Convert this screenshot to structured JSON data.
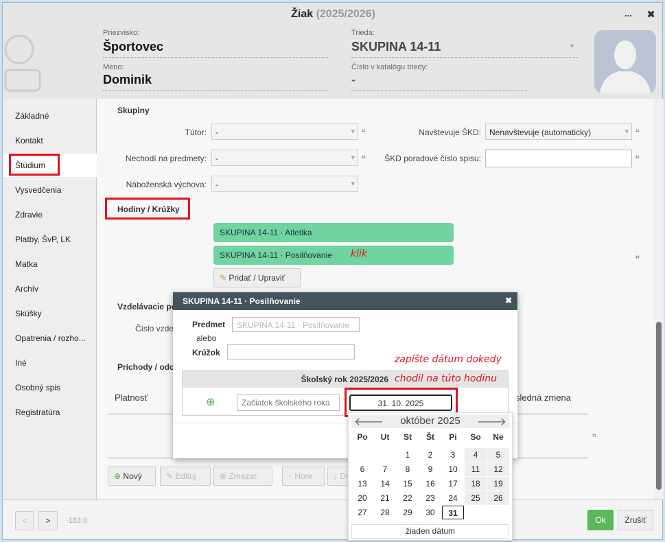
{
  "window": {
    "title": "Žiak",
    "year": "(2025/2026)",
    "more": "...",
    "close": "✖"
  },
  "header": {
    "surname_label": "Priezvisko:",
    "surname": "Športovec",
    "name_label": "Meno:",
    "name": "Dominik",
    "class_label": "Trieda:",
    "class": "SKUPINA 14-11",
    "catalog_label": "Číslo v katalógu triedy:",
    "catalog": "-"
  },
  "sidebar": {
    "items": [
      {
        "label": "Základné"
      },
      {
        "label": "Kontakt"
      },
      {
        "label": "Štúdium"
      },
      {
        "label": "Vysvedčenia"
      },
      {
        "label": "Zdravie"
      },
      {
        "label": "Platby, ŠvP, LK"
      },
      {
        "label": "Matka"
      },
      {
        "label": "Archív"
      },
      {
        "label": "Skúšky"
      },
      {
        "label": "Opatrenia / rozho..."
      },
      {
        "label": "Iné"
      },
      {
        "label": "Osobný spis"
      },
      {
        "label": "Registratúra"
      }
    ],
    "selected": "Štúdium"
  },
  "main": {
    "groups_title": "Skupiny",
    "tutor_label": "Tútor:",
    "tutor": "-",
    "not_attending_label": "Nechodí na predmety:",
    "not_attending": "-",
    "religion_label": "Náboženská výchova:",
    "religion": "-",
    "skd_label": "Navštevuje ŠKD:",
    "skd": "Nenavštevuje (automaticky)",
    "skd_num_label": "ŠKD poradové číslo spisu:",
    "skd_num": "",
    "hash": "⌗",
    "hours_title": "Hodiny / Krúžky",
    "hours": [
      {
        "label": "SKUPINA 14-11 · Atletika"
      },
      {
        "label": "SKUPINA 14-11 · Posilňovanie"
      }
    ],
    "annotation_click": "klik",
    "add_edit": "Pridať / Upraviť",
    "edu_title": "Vzdelávacie po",
    "edu_num_label": "Číslo vzde",
    "arrivals_title": "Príchody / odch",
    "validity": "Platnosť",
    "last_change": "sledná zmena",
    "toolbar": {
      "new": "Nový",
      "edit": "Edituj",
      "delete": "Zmazať",
      "up": "Hore",
      "down": "Do"
    }
  },
  "dialog": {
    "title": "SKUPINA 14-11 · Posilňovanie",
    "subject_label": "Predmet",
    "subject_placeholder": "SKUPINA 14-11 · Posilňovanie",
    "or": "alebo",
    "club_label": "Krúžok",
    "club": "",
    "year_header": "Školský rok 2025/2026",
    "start_placeholder": "Začiatok školského roka",
    "end_value": "31. 10. 2025"
  },
  "annotation": {
    "line1": "zapíšte dátum dokedy",
    "line2": "chodil na túto hodinu"
  },
  "calendar": {
    "month": "október 2025",
    "weekdays": [
      "Po",
      "Ut",
      "St",
      "Št",
      "Pi",
      "So",
      "Ne"
    ],
    "first_weekday": 2,
    "days": 31,
    "selected": 31,
    "no_date": "žiaden dátum"
  },
  "footer": {
    "prev": "<",
    "next": ">",
    "coords": "-183:0",
    "ok": "Ok",
    "cancel": "Zrušiť"
  },
  "colors": {
    "accent": "#5cb85c",
    "highlight": "#e0141e",
    "chip": "#6fd4a0",
    "dialog_header": "#44545f"
  }
}
